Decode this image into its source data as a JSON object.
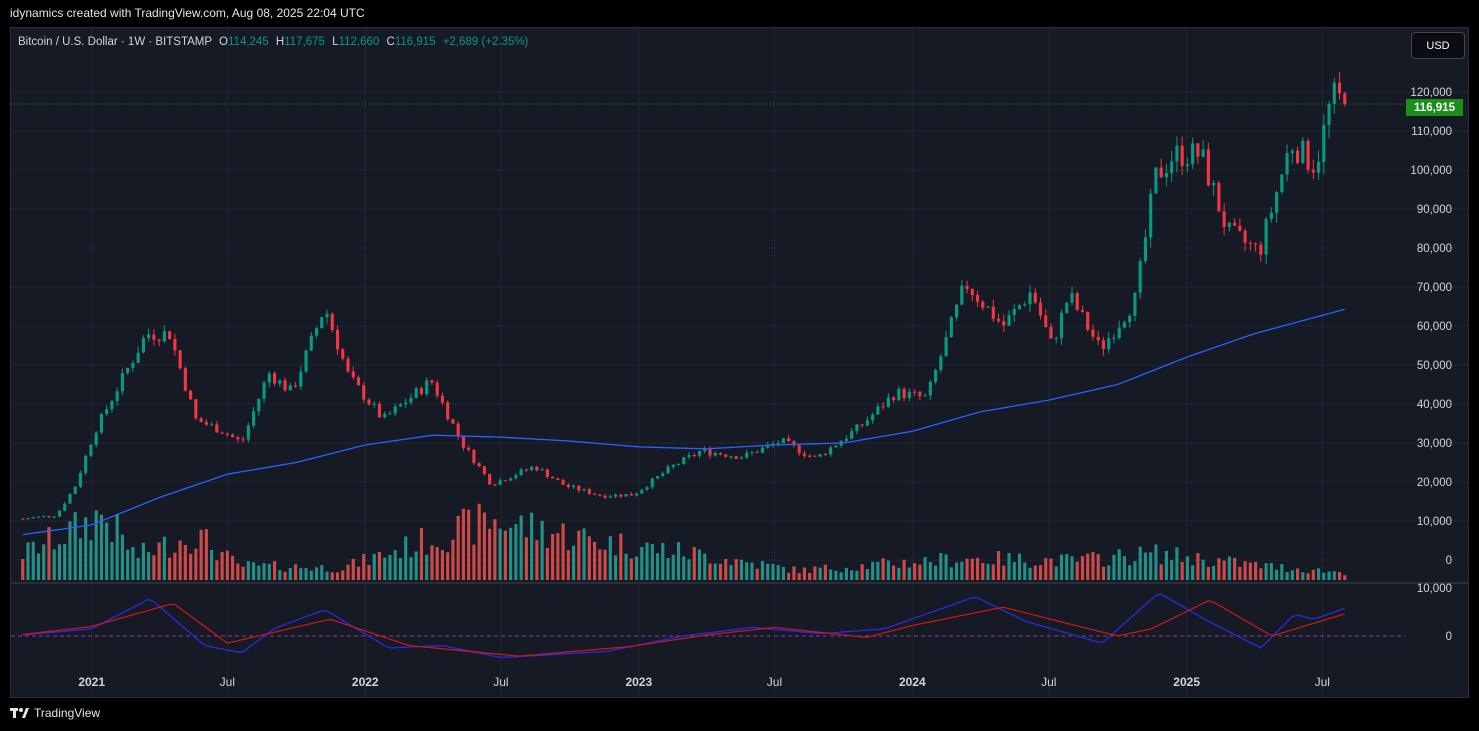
{
  "header": {
    "caption": "idynamics created with TradingView.com, Aug 08, 2025 22:04 UTC"
  },
  "legend": {
    "symbol": "Bitcoin / U.S. Dollar · 1W · BITSTAMP",
    "open_label": "O",
    "open": "114,245",
    "high_label": "H",
    "high": "117,675",
    "low_label": "L",
    "low": "112,660",
    "close_label": "C",
    "close": "116,915",
    "change": "+2,689 (+2.35%)"
  },
  "currency_button": "USD",
  "last_price_tag": "116,915",
  "footer": {
    "brand": "TradingView"
  },
  "colors": {
    "up": "#089981",
    "down": "#f23645",
    "ma": "#2962ff",
    "vol_up": "#26a69a",
    "vol_down": "#ef5350",
    "osc_fast": "#2a2ae0",
    "osc_slow": "#c21a1a"
  },
  "chart_data": [
    {
      "type": "candlestick",
      "interval": "1W",
      "price_axis_ticks": [
        "0",
        "10,000",
        "20,000",
        "30,000",
        "40,000",
        "50,000",
        "60,000",
        "70,000",
        "80,000",
        "90,000",
        "100,000",
        "110,000",
        "120,000"
      ],
      "time_axis_ticks": [
        "2021",
        "Jul",
        "2022",
        "Jul",
        "2023",
        "Jul",
        "2024",
        "Jul",
        "2025",
        "Jul"
      ],
      "ylim": [
        -5000,
        133000
      ],
      "keypoints_close": [
        {
          "x": "2020-10-01",
          "y": 10600
        },
        {
          "x": "2020-11-15",
          "y": 11500
        },
        {
          "x": "2020-12-10",
          "y": 19000
        },
        {
          "x": "2021-01-05",
          "y": 33000
        },
        {
          "x": "2021-02-15",
          "y": 48000
        },
        {
          "x": "2021-03-15",
          "y": 58000
        },
        {
          "x": "2021-04-15",
          "y": 58000
        },
        {
          "x": "2021-05-20",
          "y": 36000
        },
        {
          "x": "2021-06-25",
          "y": 33000
        },
        {
          "x": "2021-07-20",
          "y": 30000
        },
        {
          "x": "2021-08-25",
          "y": 48000
        },
        {
          "x": "2021-09-25",
          "y": 43000
        },
        {
          "x": "2021-11-08",
          "y": 65000
        },
        {
          "x": "2021-12-10",
          "y": 47000
        },
        {
          "x": "2022-01-25",
          "y": 36000
        },
        {
          "x": "2022-03-30",
          "y": 46000
        },
        {
          "x": "2022-05-10",
          "y": 30000
        },
        {
          "x": "2022-06-18",
          "y": 19500
        },
        {
          "x": "2022-08-15",
          "y": 24000
        },
        {
          "x": "2022-09-25",
          "y": 19000
        },
        {
          "x": "2022-11-12",
          "y": 16500
        },
        {
          "x": "2022-12-25",
          "y": 16800
        },
        {
          "x": "2023-02-15",
          "y": 24000
        },
        {
          "x": "2023-03-25",
          "y": 28000
        },
        {
          "x": "2023-05-20",
          "y": 26500
        },
        {
          "x": "2023-07-10",
          "y": 30500
        },
        {
          "x": "2023-08-25",
          "y": 26000
        },
        {
          "x": "2023-10-25",
          "y": 34500
        },
        {
          "x": "2023-12-10",
          "y": 43000
        },
        {
          "x": "2024-01-20",
          "y": 41500
        },
        {
          "x": "2024-03-12",
          "y": 71000
        },
        {
          "x": "2024-05-01",
          "y": 60000
        },
        {
          "x": "2024-06-08",
          "y": 69000
        },
        {
          "x": "2024-07-05",
          "y": 55000
        },
        {
          "x": "2024-07-28",
          "y": 68000
        },
        {
          "x": "2024-09-08",
          "y": 54000
        },
        {
          "x": "2024-10-25",
          "y": 67000
        },
        {
          "x": "2024-11-20",
          "y": 98000
        },
        {
          "x": "2024-12-15",
          "y": 104000
        },
        {
          "x": "2025-01-20",
          "y": 104000
        },
        {
          "x": "2025-02-25",
          "y": 84000
        },
        {
          "x": "2025-04-08",
          "y": 79000
        },
        {
          "x": "2025-05-20",
          "y": 107000
        },
        {
          "x": "2025-06-22",
          "y": 101000
        },
        {
          "x": "2025-07-14",
          "y": 119000
        },
        {
          "x": "2025-08-04",
          "y": 116915
        }
      ],
      "moving_average": [
        {
          "x": "2020-10-01",
          "y": 6500
        },
        {
          "x": "2021-01-01",
          "y": 9000
        },
        {
          "x": "2021-04-01",
          "y": 16000
        },
        {
          "x": "2021-07-01",
          "y": 22000
        },
        {
          "x": "2021-10-01",
          "y": 25000
        },
        {
          "x": "2022-01-01",
          "y": 29500
        },
        {
          "x": "2022-04-01",
          "y": 32000
        },
        {
          "x": "2022-07-01",
          "y": 31500
        },
        {
          "x": "2022-10-01",
          "y": 30500
        },
        {
          "x": "2023-01-01",
          "y": 29000
        },
        {
          "x": "2023-04-01",
          "y": 28500
        },
        {
          "x": "2023-07-01",
          "y": 29500
        },
        {
          "x": "2023-10-01",
          "y": 30000
        },
        {
          "x": "2024-01-01",
          "y": 33000
        },
        {
          "x": "2024-04-01",
          "y": 38000
        },
        {
          "x": "2024-07-01",
          "y": 41000
        },
        {
          "x": "2024-10-01",
          "y": 45000
        },
        {
          "x": "2025-01-01",
          "y": 52000
        },
        {
          "x": "2025-04-01",
          "y": 58000
        },
        {
          "x": "2025-08-04",
          "y": 64500
        }
      ]
    },
    {
      "type": "bar",
      "name": "volume",
      "keypoints": [
        {
          "x": "2020-10-01",
          "y": 0.22
        },
        {
          "x": "2020-12-20",
          "y": 0.45
        },
        {
          "x": "2021-01-15",
          "y": 0.55
        },
        {
          "x": "2021-03-01",
          "y": 0.2
        },
        {
          "x": "2021-05-20",
          "y": 0.38
        },
        {
          "x": "2021-07-15",
          "y": 0.12
        },
        {
          "x": "2021-12-01",
          "y": 0.1
        },
        {
          "x": "2022-06-18",
          "y": 0.5
        },
        {
          "x": "2022-11-12",
          "y": 0.32
        },
        {
          "x": "2023-03-15",
          "y": 0.22
        },
        {
          "x": "2023-08-01",
          "y": 0.08
        },
        {
          "x": "2024-03-10",
          "y": 0.18
        },
        {
          "x": "2024-08-05",
          "y": 0.16
        },
        {
          "x": "2024-11-20",
          "y": 0.22
        },
        {
          "x": "2025-04-08",
          "y": 0.12
        },
        {
          "x": "2025-08-04",
          "y": 0.06
        }
      ]
    },
    {
      "type": "line",
      "name": "oscillator",
      "axis_ticks": [
        "10,000",
        "0"
      ],
      "series": [
        {
          "name": "fast",
          "keypoints": [
            {
              "x": "2020-10-01",
              "y": 200
            },
            {
              "x": "2021-01-01",
              "y": 1500
            },
            {
              "x": "2021-03-20",
              "y": 7800
            },
            {
              "x": "2021-06-01",
              "y": -2000
            },
            {
              "x": "2021-07-20",
              "y": -3500
            },
            {
              "x": "2021-09-01",
              "y": 1500
            },
            {
              "x": "2021-11-08",
              "y": 5500
            },
            {
              "x": "2022-02-01",
              "y": -2500
            },
            {
              "x": "2022-04-15",
              "y": -2000
            },
            {
              "x": "2022-07-01",
              "y": -4500
            },
            {
              "x": "2022-11-20",
              "y": -3200
            },
            {
              "x": "2023-03-01",
              "y": 0
            },
            {
              "x": "2023-06-01",
              "y": 1800
            },
            {
              "x": "2023-09-01",
              "y": 500
            },
            {
              "x": "2023-11-25",
              "y": 1500
            },
            {
              "x": "2024-03-25",
              "y": 8200
            },
            {
              "x": "2024-06-01",
              "y": 3000
            },
            {
              "x": "2024-09-10",
              "y": -1500
            },
            {
              "x": "2024-11-25",
              "y": 9000
            },
            {
              "x": "2025-01-25",
              "y": 3500
            },
            {
              "x": "2025-04-10",
              "y": -2500
            },
            {
              "x": "2025-05-25",
              "y": 4500
            },
            {
              "x": "2025-06-20",
              "y": 3500
            },
            {
              "x": "2025-08-04",
              "y": 6000
            }
          ]
        },
        {
          "name": "slow",
          "keypoints": [
            {
              "x": "2020-10-01",
              "y": 300
            },
            {
              "x": "2021-01-01",
              "y": 2000
            },
            {
              "x": "2021-04-20",
              "y": 6800
            },
            {
              "x": "2021-07-01",
              "y": -1500
            },
            {
              "x": "2021-11-15",
              "y": 3500
            },
            {
              "x": "2022-03-01",
              "y": -2000
            },
            {
              "x": "2022-07-25",
              "y": -4200
            },
            {
              "x": "2022-12-20",
              "y": -2200
            },
            {
              "x": "2023-04-01",
              "y": 200
            },
            {
              "x": "2023-07-01",
              "y": 1800
            },
            {
              "x": "2023-11-01",
              "y": -300
            },
            {
              "x": "2024-01-01",
              "y": 2200
            },
            {
              "x": "2024-05-01",
              "y": 6000
            },
            {
              "x": "2024-10-01",
              "y": 0
            },
            {
              "x": "2024-11-15",
              "y": 1500
            },
            {
              "x": "2025-02-01",
              "y": 7500
            },
            {
              "x": "2025-04-25",
              "y": 0
            },
            {
              "x": "2025-08-04",
              "y": 4800
            }
          ]
        }
      ]
    }
  ]
}
